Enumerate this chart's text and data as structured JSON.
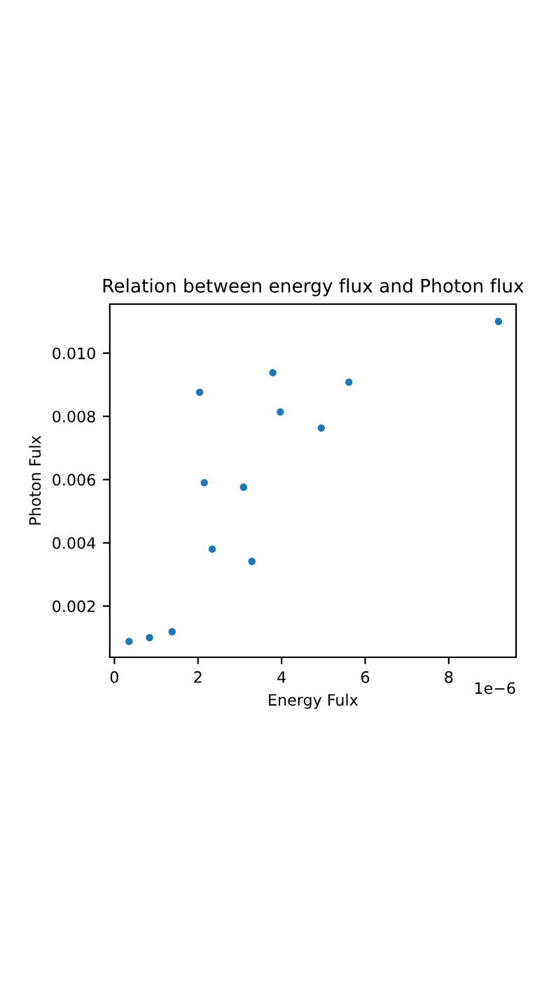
{
  "chart_data": {
    "type": "scatter",
    "title": "Relation between energy flux and Photon flux",
    "xlabel": "Energy Fulx",
    "ylabel": "Photon Fulx",
    "annotations": [
      "1e−6"
    ],
    "x": [
      0.35,
      0.84,
      1.38,
      2.34,
      2.15,
      2.04,
      3.29,
      3.09,
      3.97,
      3.79,
      4.95,
      5.61,
      9.19
    ],
    "series": [
      {
        "color": "#1f77b4",
        "values": [
          0.00088,
          0.001,
          0.00119,
          0.0038,
          0.0059,
          0.00876,
          0.00341,
          0.00576,
          0.00814,
          0.00938,
          0.00763,
          0.00908,
          0.011
        ]
      }
    ],
    "xlim": [
      -0.11,
      9.61
    ],
    "xticks": [
      0,
      2,
      4,
      6,
      8
    ],
    "ylim": [
      0.00038,
      0.01155
    ],
    "yticks": [
      0.002,
      0.004,
      0.006,
      {
        "value": 0.008,
        "label": "0.008"
      },
      {
        "value": 0.01,
        "label": "0.010"
      }
    ],
    "marker": "circle"
  }
}
